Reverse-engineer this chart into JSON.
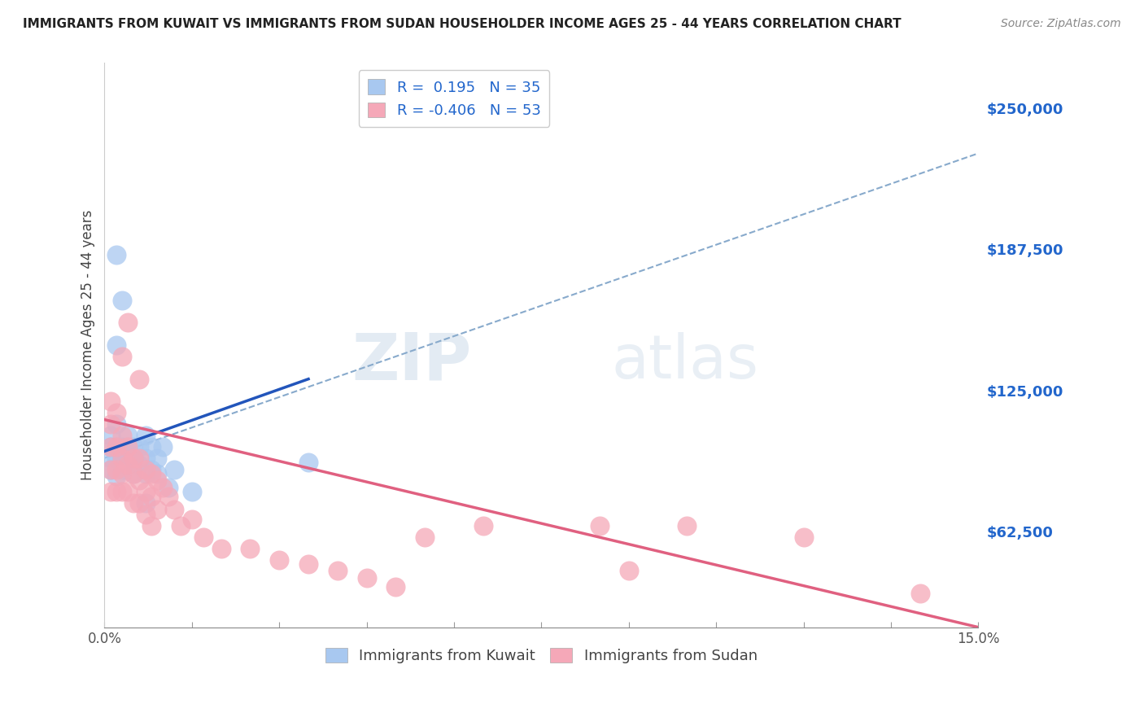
{
  "title": "IMMIGRANTS FROM KUWAIT VS IMMIGRANTS FROM SUDAN HOUSEHOLDER INCOME AGES 25 - 44 YEARS CORRELATION CHART",
  "source": "Source: ZipAtlas.com",
  "ylabel": "Householder Income Ages 25 - 44 years",
  "xlim": [
    0.0,
    0.15
  ],
  "ylim": [
    20000,
    270000
  ],
  "yticks": [
    62500,
    125000,
    187500,
    250000
  ],
  "ytick_labels": [
    "$62,500",
    "$125,000",
    "$187,500",
    "$250,000"
  ],
  "xtick_positions": [
    0.0,
    0.015,
    0.03,
    0.045,
    0.06,
    0.075,
    0.09,
    0.105,
    0.12,
    0.135,
    0.15
  ],
  "xtick_labels_sparse": {
    "0.0": "0.0%",
    "0.15": "15.0%"
  },
  "kuwait_R": 0.195,
  "kuwait_N": 35,
  "sudan_R": -0.406,
  "sudan_N": 53,
  "kuwait_color": "#a8c8f0",
  "sudan_color": "#f5a8b8",
  "kuwait_line_color": "#2255bb",
  "sudan_line_color": "#e06080",
  "dashed_line_color": "#88aacc",
  "background_color": "#ffffff",
  "watermark_zip": "ZIP",
  "watermark_atlas": "atlas",
  "kuwait_x": [
    0.001,
    0.001,
    0.001,
    0.001,
    0.002,
    0.002,
    0.002,
    0.002,
    0.003,
    0.003,
    0.003,
    0.004,
    0.004,
    0.004,
    0.005,
    0.005,
    0.005,
    0.006,
    0.006,
    0.007,
    0.007,
    0.007,
    0.008,
    0.008,
    0.009,
    0.009,
    0.01,
    0.011,
    0.012,
    0.015,
    0.002,
    0.003,
    0.035,
    0.002,
    0.007
  ],
  "kuwait_y": [
    105000,
    100000,
    95000,
    90000,
    110000,
    100000,
    95000,
    87000,
    100000,
    95000,
    90000,
    105000,
    100000,
    95000,
    100000,
    95000,
    88000,
    100000,
    92000,
    105000,
    95000,
    88000,
    100000,
    90000,
    95000,
    88000,
    100000,
    82000,
    90000,
    80000,
    145000,
    165000,
    93000,
    185000,
    75000
  ],
  "sudan_x": [
    0.001,
    0.001,
    0.001,
    0.001,
    0.001,
    0.002,
    0.002,
    0.002,
    0.002,
    0.003,
    0.003,
    0.003,
    0.003,
    0.004,
    0.004,
    0.004,
    0.005,
    0.005,
    0.005,
    0.006,
    0.006,
    0.006,
    0.007,
    0.007,
    0.007,
    0.008,
    0.008,
    0.008,
    0.009,
    0.009,
    0.01,
    0.011,
    0.012,
    0.013,
    0.015,
    0.017,
    0.02,
    0.025,
    0.03,
    0.035,
    0.04,
    0.045,
    0.05,
    0.055,
    0.065,
    0.085,
    0.09,
    0.1,
    0.12,
    0.14,
    0.003,
    0.004,
    0.006
  ],
  "sudan_y": [
    120000,
    110000,
    100000,
    90000,
    80000,
    115000,
    100000,
    90000,
    80000,
    105000,
    95000,
    88000,
    80000,
    100000,
    92000,
    80000,
    95000,
    88000,
    75000,
    95000,
    85000,
    75000,
    90000,
    80000,
    70000,
    88000,
    78000,
    65000,
    85000,
    72000,
    82000,
    78000,
    72000,
    65000,
    68000,
    60000,
    55000,
    55000,
    50000,
    48000,
    45000,
    42000,
    38000,
    60000,
    65000,
    65000,
    45000,
    65000,
    60000,
    35000,
    140000,
    155000,
    130000
  ]
}
